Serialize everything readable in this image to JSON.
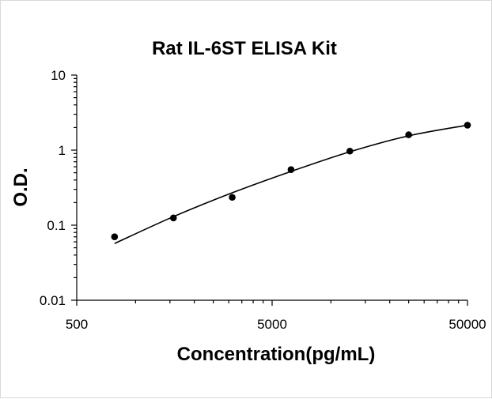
{
  "chart_data": {
    "type": "scatter",
    "title": "Rat IL-6ST ELISA Kit",
    "xlabel": "Concentration(pg/mL)",
    "ylabel": "O.D.",
    "x_scale": "log",
    "y_scale": "log",
    "xlim": [
      500,
      50000
    ],
    "ylim": [
      0.01,
      10
    ],
    "x_tick_labels": [
      {
        "value": 500,
        "label": "500"
      },
      {
        "value": 5000,
        "label": "5000"
      },
      {
        "value": 50000,
        "label": "50000"
      }
    ],
    "y_tick_labels": [
      {
        "value": 10,
        "label": "10"
      },
      {
        "value": 1,
        "label": "1"
      },
      {
        "value": 0.1,
        "label": "0.1"
      },
      {
        "value": 0.01,
        "label": "0.01"
      }
    ],
    "grid": false,
    "legend": "none",
    "series": [
      {
        "points": [
          {
            "x": 781,
            "y": 0.07
          },
          {
            "x": 1563,
            "y": 0.125
          },
          {
            "x": 3125,
            "y": 0.235
          },
          {
            "x": 6250,
            "y": 0.55
          },
          {
            "x": 12500,
            "y": 0.97
          },
          {
            "x": 25000,
            "y": 1.6
          },
          {
            "x": 50000,
            "y": 2.15
          }
        ],
        "fit_curve": [
          {
            "x": 781,
            "y": 0.057
          },
          {
            "x": 1563,
            "y": 0.13
          },
          {
            "x": 3125,
            "y": 0.27
          },
          {
            "x": 6250,
            "y": 0.52
          },
          {
            "x": 12500,
            "y": 0.95
          },
          {
            "x": 25000,
            "y": 1.55
          },
          {
            "x": 50000,
            "y": 2.15
          }
        ]
      }
    ],
    "colors": {
      "marker": "#000000",
      "line": "#000000"
    }
  }
}
